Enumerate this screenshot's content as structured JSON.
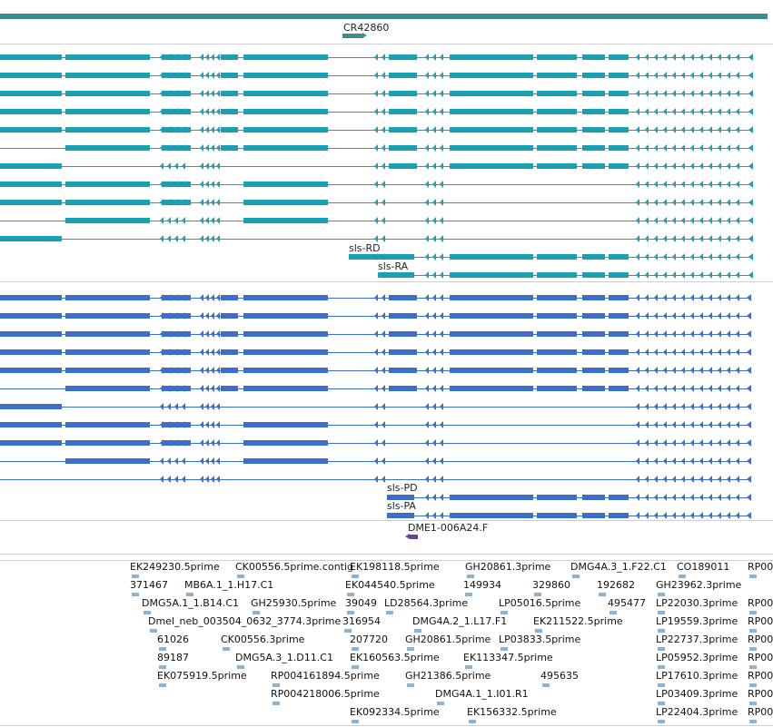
{
  "tracks": {
    "gene_model": {
      "name": "CR42860",
      "color": "#3a8f8a"
    },
    "transcripts": {
      "color": "#1a9fb5",
      "labels": [
        "sls-RD",
        "sls-RA"
      ]
    },
    "proteins": {
      "color": "#3b6fc9",
      "labels": [
        "sls-PD",
        "sls-PA"
      ]
    },
    "clone": {
      "name": "DME1-006A24.F",
      "color": "#6b3fa0"
    },
    "ests": {
      "color": "#8ab4d6",
      "labels": [
        "EK249230.5prime",
        "CK00556.5prime.contig",
        "EK198118.5prime",
        "GH20861.3prime",
        "DMG4A.3_1.F22.C1",
        "CO189011",
        "RP00",
        "371467",
        "MB6A.1_1.H17.C1",
        "EK044540.5prime",
        "149934",
        "329860",
        "192682",
        "GH23962.3prime",
        "DMG5A.1_1.B14.C1",
        "GH25930.5prime",
        "39049",
        "LD28564.3prime",
        "LP05016.5prime",
        "495477",
        "LP22030.3prime",
        "RP00",
        "Dmel_neb_003504_0632_3774.3prime",
        "316954",
        "DMG4A.2_1.L17.F1",
        "EK211522.5prime",
        "LP19559.3prime",
        "RP00",
        "61026",
        "CK00556.3prime",
        "207720",
        "GH20861.5prime",
        "LP03833.5prime",
        "LP22737.3prime",
        "RP00",
        "89187",
        "DMG5A.3_1.D11.C1",
        "EK160563.5prime",
        "EK113347.5prime",
        "LP05952.3prime",
        "RP00",
        "EK075919.5prime",
        "RP004161894.5prime",
        "GH21386.5prime",
        "495635",
        "LP17610.3prime",
        "RP00",
        "RP004218006.5prime",
        "DMG4A.1_1.I01.R1",
        "LP03409.3prime",
        "RP00",
        "EK092334.5prime",
        "EK156332.5prime",
        "LP22404.3prime",
        "RP00"
      ]
    }
  }
}
